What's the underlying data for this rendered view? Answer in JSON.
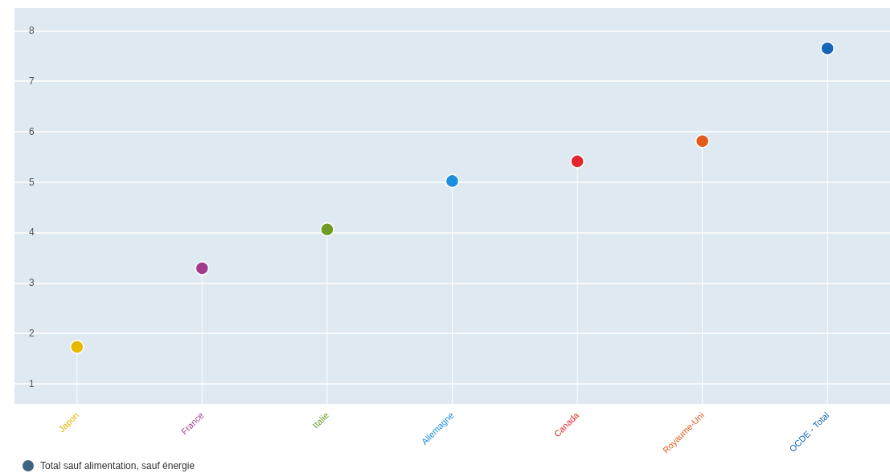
{
  "chart_data": {
    "type": "lollipop",
    "categories": [
      "Japon",
      "France",
      "Italie",
      "Allemagne",
      "Canada",
      "Royaume-Uni",
      "OCDE - Total"
    ],
    "series": [
      {
        "name": "Total sauf alimentation, sauf énergie",
        "color": "#3d6483",
        "values": [
          1.73,
          3.29,
          4.06,
          5.02,
          5.41,
          5.81,
          7.65
        ],
        "colors": [
          "#e6b800",
          "#a23a8e",
          "#6e9c24",
          "#1a8fe0",
          "#e3262e",
          "#e35a1c",
          "#1565b8"
        ]
      }
    ],
    "ylim": [
      0.6,
      8.45
    ],
    "yticks": [
      1,
      2,
      3,
      4,
      5,
      6,
      7,
      8
    ],
    "grid": "y",
    "legend": "bottom left",
    "marker": "circle"
  }
}
